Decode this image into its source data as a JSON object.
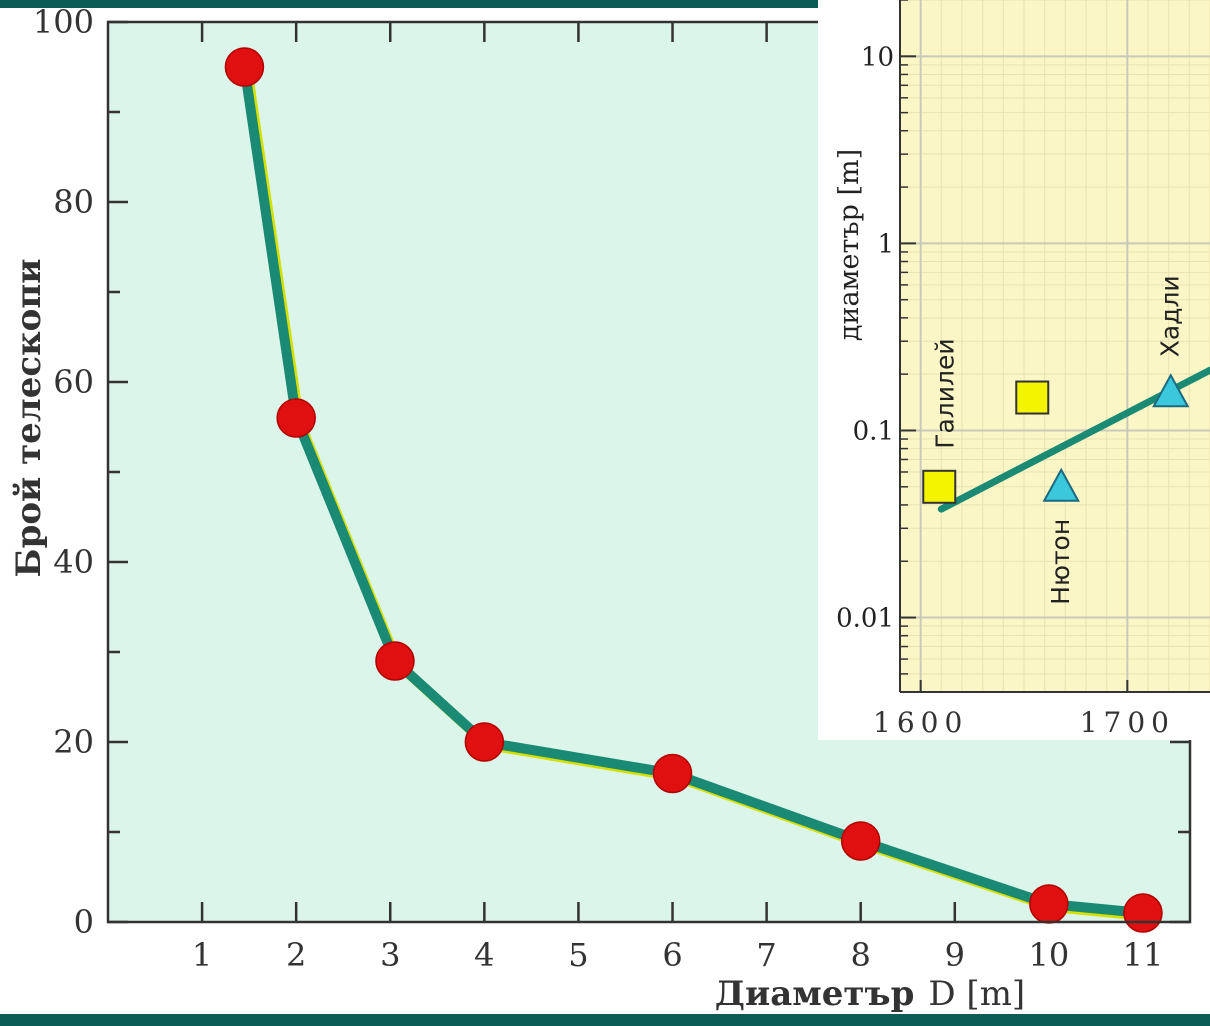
{
  "chart_data": [
    {
      "type": "line",
      "title": "",
      "xlabel_bold": "Диаметър",
      "xlabel_rest": "D [m]",
      "ylabel": "Брой телескопи",
      "xlim": [
        0,
        11.5
      ],
      "ylim": [
        0,
        100
      ],
      "x_ticks": [
        "1",
        "2",
        "3",
        "4",
        "5",
        "6",
        "7",
        "8",
        "9",
        "10",
        "11"
      ],
      "y_ticks": [
        "0",
        "20",
        "40",
        "60",
        "80",
        "100"
      ],
      "series": [
        {
          "x": [
            1.45,
            2.0,
            3.05,
            4.0,
            6.0,
            8.0,
            10.0,
            11.0
          ],
          "values": [
            95,
            56,
            29,
            20,
            16.5,
            9,
            2,
            1
          ]
        }
      ],
      "colors": {
        "line": "#1a8a74",
        "marker": "#e01010",
        "background": "#dcf5ea"
      }
    },
    {
      "type": "scatter",
      "title": "",
      "ylabel": "диаметър [m]",
      "y_scale": "log",
      "ylim": [
        0.004,
        20
      ],
      "xlim": [
        1590,
        1740
      ],
      "x_ticks": [
        "1600",
        "1700"
      ],
      "y_ticks": [
        "0.01",
        "0.1",
        "1",
        "10"
      ],
      "points": [
        {
          "label": "Галилей",
          "year": 1609,
          "diameter": 0.05,
          "marker": "square"
        },
        {
          "label": "",
          "year": 1654,
          "diameter": 0.15,
          "marker": "square"
        },
        {
          "label": "Нютон",
          "year": 1668,
          "diameter": 0.05,
          "marker": "triangle"
        },
        {
          "label": "Хадли",
          "year": 1721,
          "diameter": 0.16,
          "marker": "triangle"
        }
      ],
      "trend": {
        "x": [
          1610,
          1740
        ],
        "values": [
          0.038,
          0.21
        ]
      },
      "colors": {
        "square": "#f4f400",
        "triangle": "#3cc8dc",
        "line": "#1a8a74",
        "background": "#fbf6c6"
      }
    }
  ]
}
